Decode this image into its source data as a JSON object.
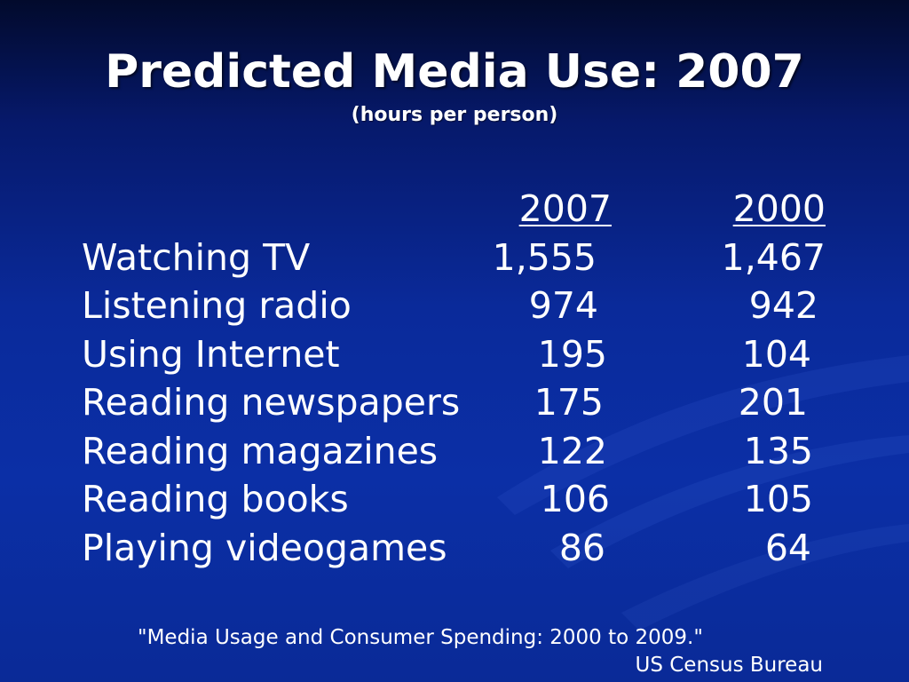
{
  "slide": {
    "title": "Predicted Media Use: 2007",
    "subtitle": "(hours per person)"
  },
  "table": {
    "headers": [
      "2007",
      "2000"
    ],
    "rows": [
      {
        "label": "Watching TV",
        "v2007": "1,555",
        "v2000": "1,467"
      },
      {
        "label": "Listening radio",
        "v2007": "974",
        "v2000": "942"
      },
      {
        "label": "Using Internet",
        "v2007": "195",
        "v2000": "104"
      },
      {
        "label": "Reading newspapers",
        "v2007": "175",
        "v2000": "201"
      },
      {
        "label": "Reading magazines",
        "v2007": "122",
        "v2000": "135"
      },
      {
        "label": "Reading books",
        "v2007": "106",
        "v2000": "105"
      },
      {
        "label": "Playing videogames",
        "v2007": "86",
        "v2000": "64"
      }
    ]
  },
  "source": {
    "line1": "\"Media Usage and Consumer Spending: 2000 to 2009.\"",
    "line2": "US Census Bureau"
  },
  "colors": {
    "background": "#0b2fa6",
    "text": "#ffffff"
  }
}
